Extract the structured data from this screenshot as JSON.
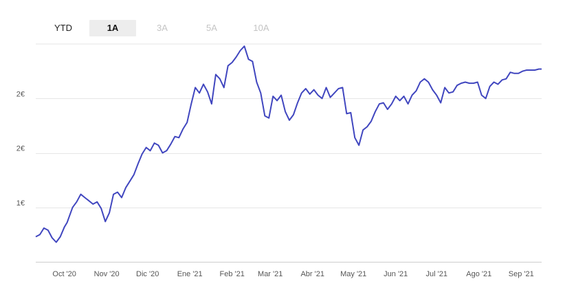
{
  "range_selector": {
    "tabs": [
      {
        "label": "YTD",
        "active": false,
        "enabled": true
      },
      {
        "label": "1A",
        "active": true,
        "enabled": true
      },
      {
        "label": "3A",
        "active": false,
        "enabled": false
      },
      {
        "label": "5A",
        "active": false,
        "enabled": false
      },
      {
        "label": "10A",
        "active": false,
        "enabled": false
      }
    ]
  },
  "colors": {
    "line": "#4046bf",
    "grid": "#e6e6e6",
    "axis": "#cccccc"
  },
  "chart_data": {
    "type": "line",
    "title": "",
    "xlabel": "",
    "ylabel": "",
    "grid": true,
    "ylim": [
      0.5,
      2.5
    ],
    "xlim": [
      "2020-09-10",
      "2021-09-16"
    ],
    "y_ticks": [
      {
        "value": 1.0,
        "label": "1€"
      },
      {
        "value": 1.5,
        "label": "2€"
      },
      {
        "value": 2.0,
        "label": "2€"
      }
    ],
    "x_ticks": [
      {
        "value": "2020-10-01",
        "label": "Oct '20"
      },
      {
        "value": "2020-11-01",
        "label": "Nov '20"
      },
      {
        "value": "2020-12-01",
        "label": "Dic '20"
      },
      {
        "value": "2021-01-01",
        "label": "Ene '21"
      },
      {
        "value": "2021-02-01",
        "label": "Feb '21"
      },
      {
        "value": "2021-03-01",
        "label": "Mar '21"
      },
      {
        "value": "2021-04-01",
        "label": "Abr '21"
      },
      {
        "value": "2021-05-01",
        "label": "May '21"
      },
      {
        "value": "2021-06-01",
        "label": "Jun '21"
      },
      {
        "value": "2021-07-01",
        "label": "Jul '21"
      },
      {
        "value": "2021-08-01",
        "label": "Ago '21"
      },
      {
        "value": "2021-09-01",
        "label": "Sep '21"
      }
    ],
    "series": [
      {
        "x": [
          "2020-09-10",
          "2020-09-13",
          "2020-09-16",
          "2020-09-19",
          "2020-09-22",
          "2020-09-25",
          "2020-09-28",
          "2020-10-01",
          "2020-10-03",
          "2020-10-05",
          "2020-10-07",
          "2020-10-10",
          "2020-10-13",
          "2020-10-16",
          "2020-10-19",
          "2020-10-22",
          "2020-10-25",
          "2020-10-28",
          "2020-10-31",
          "2020-11-03",
          "2020-11-06",
          "2020-11-09",
          "2020-11-12",
          "2020-11-15",
          "2020-11-18",
          "2020-11-21",
          "2020-11-24",
          "2020-11-27",
          "2020-11-30",
          "2020-12-03",
          "2020-12-06",
          "2020-12-09",
          "2020-12-12",
          "2020-12-15",
          "2020-12-18",
          "2020-12-21",
          "2020-12-24",
          "2020-12-27",
          "2020-12-30",
          "2021-01-02",
          "2021-01-05",
          "2021-01-08",
          "2021-01-11",
          "2021-01-14",
          "2021-01-17",
          "2021-01-20",
          "2021-01-23",
          "2021-01-26",
          "2021-01-29",
          "2021-02-01",
          "2021-02-04",
          "2021-02-07",
          "2021-02-10",
          "2021-02-13",
          "2021-02-16",
          "2021-02-19",
          "2021-02-22",
          "2021-02-25",
          "2021-02-28",
          "2021-03-03",
          "2021-03-06",
          "2021-03-09",
          "2021-03-12",
          "2021-03-15",
          "2021-03-18",
          "2021-03-21",
          "2021-03-24",
          "2021-03-27",
          "2021-03-30",
          "2021-04-02",
          "2021-04-05",
          "2021-04-08",
          "2021-04-11",
          "2021-04-14",
          "2021-04-17",
          "2021-04-20",
          "2021-04-23",
          "2021-04-26",
          "2021-04-29",
          "2021-05-02",
          "2021-05-05",
          "2021-05-08",
          "2021-05-11",
          "2021-05-14",
          "2021-05-17",
          "2021-05-20",
          "2021-05-23",
          "2021-05-26",
          "2021-05-29",
          "2021-06-01",
          "2021-06-04",
          "2021-06-07",
          "2021-06-10",
          "2021-06-13",
          "2021-06-16",
          "2021-06-19",
          "2021-06-22",
          "2021-06-25",
          "2021-06-28",
          "2021-07-01",
          "2021-07-04",
          "2021-07-07",
          "2021-07-10",
          "2021-07-13",
          "2021-07-16",
          "2021-07-19",
          "2021-07-22",
          "2021-07-25",
          "2021-07-28",
          "2021-07-31",
          "2021-08-03",
          "2021-08-06",
          "2021-08-09",
          "2021-08-12",
          "2021-08-15",
          "2021-08-18",
          "2021-08-21",
          "2021-08-24",
          "2021-08-27",
          "2021-08-30",
          "2021-09-02",
          "2021-09-05",
          "2021-09-08",
          "2021-09-11",
          "2021-09-14",
          "2021-09-16"
        ],
        "y": [
          0.73,
          0.75,
          0.81,
          0.79,
          0.72,
          0.68,
          0.73,
          0.82,
          0.86,
          0.93,
          1.0,
          1.05,
          1.12,
          1.09,
          1.06,
          1.03,
          1.05,
          0.99,
          0.87,
          0.95,
          1.12,
          1.14,
          1.09,
          1.18,
          1.24,
          1.3,
          1.4,
          1.49,
          1.55,
          1.52,
          1.59,
          1.57,
          1.5,
          1.52,
          1.58,
          1.65,
          1.64,
          1.72,
          1.78,
          1.95,
          2.1,
          2.05,
          2.13,
          2.06,
          1.95,
          2.22,
          2.18,
          2.1,
          2.3,
          2.33,
          2.38,
          2.44,
          2.48,
          2.36,
          2.34,
          2.15,
          2.05,
          1.84,
          1.82,
          2.02,
          1.98,
          2.03,
          1.88,
          1.8,
          1.85,
          1.96,
          2.05,
          2.09,
          2.04,
          2.08,
          2.03,
          2.0,
          2.1,
          2.01,
          2.05,
          2.09,
          2.1,
          1.86,
          1.87,
          1.64,
          1.57,
          1.71,
          1.74,
          1.79,
          1.88,
          1.95,
          1.96,
          1.9,
          1.95,
          2.02,
          1.98,
          2.02,
          1.95,
          2.03,
          2.07,
          2.15,
          2.18,
          2.15,
          2.08,
          2.03,
          1.96,
          2.1,
          2.05,
          2.06,
          2.12,
          2.14,
          2.15,
          2.14,
          2.14,
          2.15,
          2.03,
          2.0,
          2.11,
          2.15,
          2.13,
          2.17,
          2.18,
          2.24,
          2.23,
          2.23,
          2.25,
          2.26,
          2.26,
          2.26,
          2.27,
          2.27
        ]
      }
    ]
  }
}
